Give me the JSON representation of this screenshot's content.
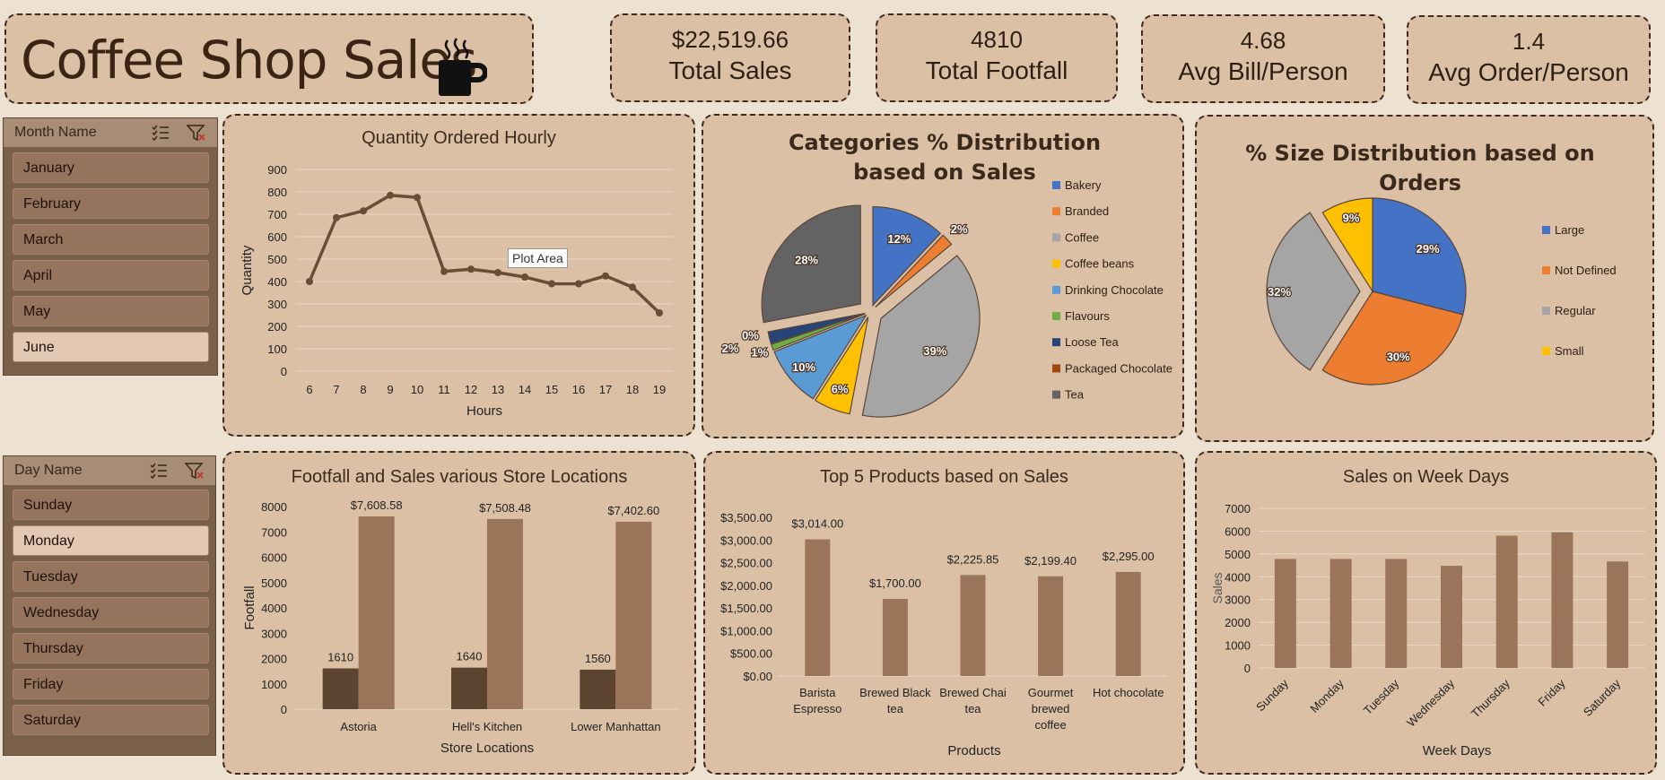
{
  "header": {
    "title": "Coffee Shop Sales"
  },
  "kpis": [
    {
      "value": "$22,519.66",
      "label": "Total Sales"
    },
    {
      "value": "4810",
      "label": "Total Footfall"
    },
    {
      "value": "4.68",
      "label": "Avg Bill/Person"
    },
    {
      "value": "1.4",
      "label": "Avg Order/Person"
    }
  ],
  "slicers": {
    "month": {
      "title": "Month Name",
      "items": [
        "January",
        "February",
        "March",
        "April",
        "May",
        "June"
      ],
      "selected": "June"
    },
    "day": {
      "title": "Day Name",
      "items": [
        "Sunday",
        "Monday",
        "Tuesday",
        "Wednesday",
        "Thursday",
        "Friday",
        "Saturday"
      ],
      "selected": "Monday"
    }
  },
  "colors": {
    "brown_dark": "#5d4431",
    "brown": "#9a7559",
    "line": "#6b4c36"
  },
  "tooltip": {
    "text": "Plot Area"
  },
  "chart_data": [
    {
      "type": "line",
      "title": "Quantity Ordered Hourly",
      "xlabel": "Hours",
      "ylabel": "Quantity",
      "x": [
        6,
        7,
        8,
        9,
        10,
        11,
        12,
        13,
        14,
        15,
        16,
        17,
        18,
        19
      ],
      "values": [
        400,
        685,
        715,
        785,
        775,
        445,
        455,
        440,
        420,
        390,
        390,
        425,
        375,
        260
      ],
      "ylim": [
        0,
        900
      ],
      "yticks": [
        0,
        100,
        200,
        300,
        400,
        500,
        600,
        700,
        800,
        900
      ]
    },
    {
      "type": "pie",
      "title": "Categories % Distribution based on Sales",
      "legend": "right",
      "categories": [
        "Bakery",
        "Branded",
        "Coffee",
        "Coffee beans",
        "Drinking Chocolate",
        "Flavours",
        "Loose Tea",
        "Packaged Chocolate",
        "Tea"
      ],
      "values": [
        12,
        2,
        39,
        6,
        10,
        1,
        2,
        0,
        28
      ],
      "labels": [
        "12%",
        "2%",
        "39%",
        "6%",
        "10%",
        "1%",
        "2%",
        "0%",
        "28%"
      ],
      "colors": [
        "#4472c4",
        "#ed7d31",
        "#a5a5a5",
        "#ffc000",
        "#5b9bd5",
        "#70ad47",
        "#264478",
        "#9e480e",
        "#636363"
      ]
    },
    {
      "type": "pie",
      "title": "% Size Distribution based on Orders",
      "legend": "right",
      "categories": [
        "Large",
        "Not Defined",
        "Regular",
        "Small"
      ],
      "values": [
        29,
        30,
        32,
        9
      ],
      "labels": [
        "29%",
        "30%",
        "32%",
        "9%"
      ],
      "colors": [
        "#4472c4",
        "#ed7d31",
        "#a5a5a5",
        "#ffc000"
      ]
    },
    {
      "type": "bar",
      "title": "Footfall and Sales various Store Locations",
      "xlabel": "Store Locations",
      "ylabel": "Footfall",
      "categories": [
        "Astoria",
        "Hell's Kitchen",
        "Lower Manhattan"
      ],
      "series": [
        {
          "values": [
            1610,
            1640,
            1560
          ],
          "labels": [
            "1610",
            "1640",
            "1560"
          ]
        },
        {
          "values": [
            7608.58,
            7508.48,
            7402.6
          ],
          "labels": [
            "$7,608.58",
            "$7,508.48",
            "$7,402.60"
          ]
        }
      ],
      "ylim": [
        0,
        8000
      ],
      "yticks": [
        0,
        1000,
        2000,
        3000,
        4000,
        5000,
        6000,
        7000,
        8000
      ]
    },
    {
      "type": "bar",
      "title": "Top 5 Products based on Sales",
      "xlabel": "Products",
      "ylabel": "",
      "categories": [
        [
          "Barista",
          "Espresso"
        ],
        [
          "Brewed Black",
          "tea"
        ],
        [
          "Brewed Chai",
          "tea"
        ],
        [
          "Gourmet",
          "brewed",
          "coffee"
        ],
        [
          "Hot chocolate"
        ]
      ],
      "values": [
        3014.0,
        1700.0,
        2225.85,
        2199.4,
        2295.0
      ],
      "labels": [
        "$3,014.00",
        "$1,700.00",
        "$2,225.85",
        "$2,199.40",
        "$2,295.00"
      ],
      "ylim": [
        0,
        3500
      ],
      "yticks": [
        "$0.00",
        "$500.00",
        "$1,000.00",
        "$1,500.00",
        "$2,000.00",
        "$2,500.00",
        "$3,000.00",
        "$3,500.00"
      ]
    },
    {
      "type": "bar",
      "title": "Sales on Week Days",
      "xlabel": "Week Days",
      "ylabel": "Sales",
      "categories": [
        "Sunday",
        "Monday",
        "Tuesday",
        "Wednesday",
        "Thursday",
        "Friday",
        "Saturday"
      ],
      "values": [
        4780,
        4780,
        4780,
        4480,
        5800,
        5950,
        4670
      ],
      "ylim": [
        0,
        7000
      ],
      "yticks": [
        0,
        1000,
        2000,
        3000,
        4000,
        5000,
        6000,
        7000
      ]
    }
  ]
}
